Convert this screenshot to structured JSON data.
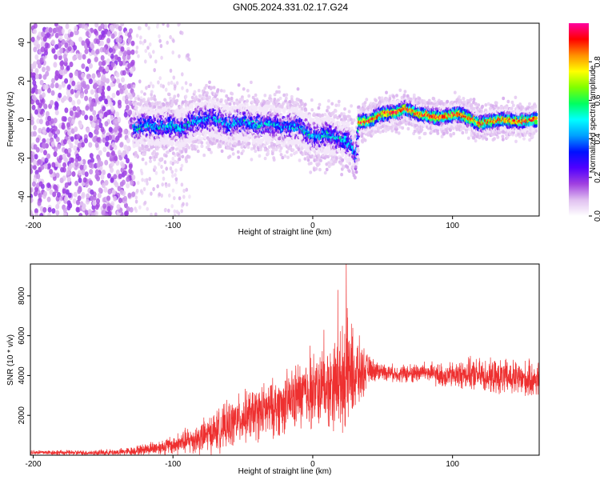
{
  "title": "GN05.2024.331.02.17.G24",
  "chart_data": [
    {
      "type": "heatmap",
      "xlabel": "Height of straight line (km)",
      "ylabel": "Frequency (Hz)",
      "xlim": [
        -202,
        162
      ],
      "ylim": [
        -50,
        50
      ],
      "xticks": [
        -200,
        -100,
        0,
        100
      ],
      "yticks": [
        -40,
        -20,
        0,
        20,
        40
      ],
      "colorbar": {
        "label": "Normalized spectral amplitude",
        "range": [
          0,
          1
        ],
        "ticks": [
          0.0,
          0.2,
          0.4,
          0.6,
          0.8
        ],
        "colormap": [
          "#ffffff",
          "#e0c0f0",
          "#a040e0",
          "#5000ff",
          "#0010ff",
          "#00a0ff",
          "#00ffff",
          "#00ff60",
          "#80ff00",
          "#ffff00",
          "#ff9000",
          "#ff0000",
          "#ff00a0"
        ]
      },
      "noise_region_x": [
        -202,
        -128
      ],
      "trace": [
        {
          "x": -128,
          "y": -5
        },
        {
          "x": -120,
          "y": -3
        },
        {
          "x": -110,
          "y": -4
        },
        {
          "x": -100,
          "y": -3
        },
        {
          "x": -95,
          "y": -5
        },
        {
          "x": -85,
          "y": -1
        },
        {
          "x": -70,
          "y": 1
        },
        {
          "x": -60,
          "y": -3
        },
        {
          "x": -50,
          "y": -1
        },
        {
          "x": -40,
          "y": -3
        },
        {
          "x": -30,
          "y": -2
        },
        {
          "x": -20,
          "y": -4
        },
        {
          "x": -10,
          "y": -3
        },
        {
          "x": 0,
          "y": -9
        },
        {
          "x": 10,
          "y": -8
        },
        {
          "x": 20,
          "y": -10
        },
        {
          "x": 28,
          "y": -13
        },
        {
          "x": 31,
          "y": -20
        },
        {
          "x": 33,
          "y": -1
        },
        {
          "x": 40,
          "y": -1
        },
        {
          "x": 50,
          "y": 3
        },
        {
          "x": 62,
          "y": 4
        },
        {
          "x": 66,
          "y": 6
        },
        {
          "x": 75,
          "y": 3
        },
        {
          "x": 90,
          "y": 1
        },
        {
          "x": 105,
          "y": 3
        },
        {
          "x": 120,
          "y": -2
        },
        {
          "x": 135,
          "y": 0
        },
        {
          "x": 148,
          "y": -1
        },
        {
          "x": 160,
          "y": 0
        }
      ]
    },
    {
      "type": "line",
      "xlabel": "Height of straight line (km)",
      "ylabel": "SNR (10 * v/v)",
      "xlim": [
        -202,
        162
      ],
      "ylim": [
        0,
        9600
      ],
      "xticks": [
        -200,
        -100,
        0,
        100
      ],
      "yticks": [
        2000,
        4000,
        6000,
        8000
      ],
      "color": "#ee3030",
      "series": [
        {
          "x": [
            -202,
            -180,
            -160,
            -140,
            -130,
            -120,
            -110,
            -100,
            -90,
            -80,
            -70,
            -60,
            -50,
            -40,
            -30,
            -20,
            -10,
            0,
            10,
            20,
            25,
            30,
            40,
            50,
            60,
            70,
            80,
            90,
            100,
            110,
            120,
            130,
            140,
            150,
            160
          ],
          "mean": [
            150,
            130,
            120,
            150,
            200,
            300,
            400,
            500,
            700,
            900,
            1200,
            1500,
            1900,
            2100,
            2300,
            2600,
            3000,
            3200,
            3400,
            3800,
            4200,
            4000,
            4300,
            4200,
            4100,
            4100,
            4200,
            4000,
            4000,
            4100,
            4000,
            3900,
            3900,
            3800,
            3800
          ],
          "spread": [
            150,
            150,
            150,
            200,
            250,
            350,
            450,
            600,
            800,
            1000,
            1200,
            1400,
            1500,
            1600,
            1700,
            1800,
            2000,
            2200,
            2400,
            2800,
            3400,
            2600,
            800,
            500,
            500,
            600,
            600,
            700,
            800,
            900,
            1000,
            1000,
            1100,
            1100,
            1100
          ],
          "peaks": [
            {
              "x": 24,
              "y": 9600
            },
            {
              "x": 18,
              "y": 8300
            },
            {
              "x": 8,
              "y": 6300
            },
            {
              "x": -2,
              "y": 5500
            }
          ]
        }
      ]
    }
  ]
}
